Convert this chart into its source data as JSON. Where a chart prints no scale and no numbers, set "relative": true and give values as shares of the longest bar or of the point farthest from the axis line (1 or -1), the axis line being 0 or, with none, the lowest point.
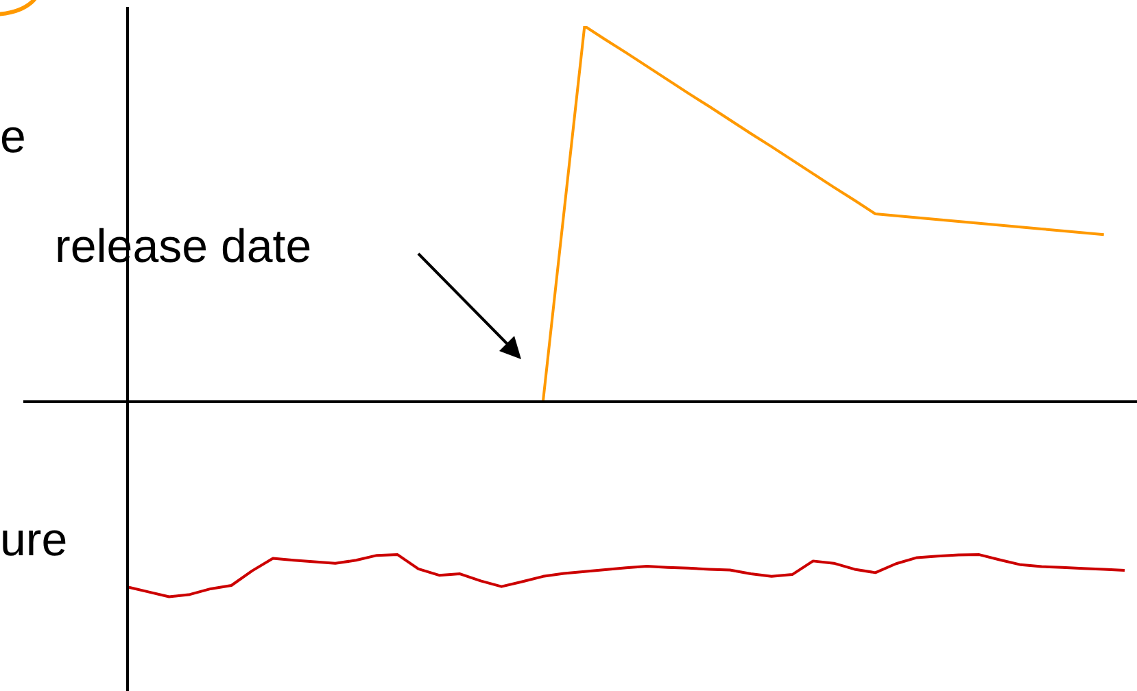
{
  "chart_data": {
    "type": "line",
    "relative": true,
    "categories": [
      null,
      null,
      null,
      null,
      null,
      null,
      null,
      null,
      null,
      null,
      null,
      null,
      null,
      null,
      null,
      null,
      null,
      null,
      null,
      null,
      null,
      null,
      null,
      null,
      null,
      null,
      null,
      null,
      null,
      null,
      null,
      null,
      null,
      null,
      null,
      null,
      null,
      null,
      null,
      null,
      null,
      null,
      null,
      null,
      null,
      null,
      null,
      null,
      null
    ],
    "series": [
      {
        "color": "#ff9900",
        "values": [
          null,
          null,
          null,
          null,
          null,
          null,
          null,
          null,
          null,
          null,
          null,
          null,
          null,
          null,
          null,
          null,
          null,
          null,
          null,
          null,
          0,
          0.5,
          1,
          0.964,
          0.929,
          0.893,
          0.857,
          0.821,
          0.786,
          0.75,
          0.714,
          0.679,
          0.643,
          0.607,
          0.571,
          0.536,
          0.5,
          0.495,
          0.49,
          0.485,
          0.48,
          0.475,
          0.47,
          0.465,
          0.46,
          0.455,
          0.45,
          0.445,
          null
        ]
      },
      {
        "color": "#cc0000",
        "values": [
          -0.493,
          -0.506,
          -0.519,
          -0.513,
          -0.498,
          -0.489,
          -0.45,
          -0.417,
          -0.422,
          -0.426,
          -0.43,
          -0.422,
          -0.409,
          -0.407,
          -0.445,
          -0.462,
          -0.458,
          -0.477,
          -0.492,
          -0.479,
          -0.465,
          -0.457,
          -0.452,
          -0.447,
          -0.442,
          -0.438,
          -0.441,
          -0.443,
          -0.446,
          -0.448,
          -0.458,
          -0.465,
          -0.46,
          -0.424,
          -0.43,
          -0.446,
          -0.455,
          -0.431,
          -0.415,
          -0.411,
          -0.408,
          -0.407,
          -0.421,
          -0.434,
          -0.439,
          -0.441,
          -0.444,
          -0.446,
          -0.449
        ]
      }
    ],
    "annotations": [
      "release date",
      "e",
      "ure"
    ]
  }
}
